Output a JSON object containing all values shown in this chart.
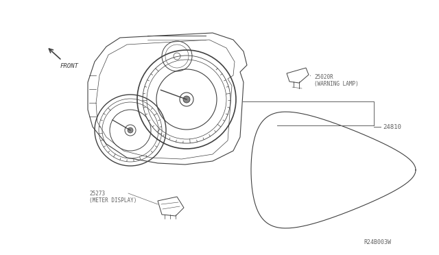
{
  "bg_color": "#ffffff",
  "line_color": "#404040",
  "label_color": "#606060",
  "title_text": "",
  "diagram_id": "R24B003W",
  "part_24810_label": "24810",
  "part_25020R_label": "25020R\n(WARNING LAMP)",
  "part_25273_label": "25273\n(METER DISPLAY)",
  "front_label": "FRONT"
}
